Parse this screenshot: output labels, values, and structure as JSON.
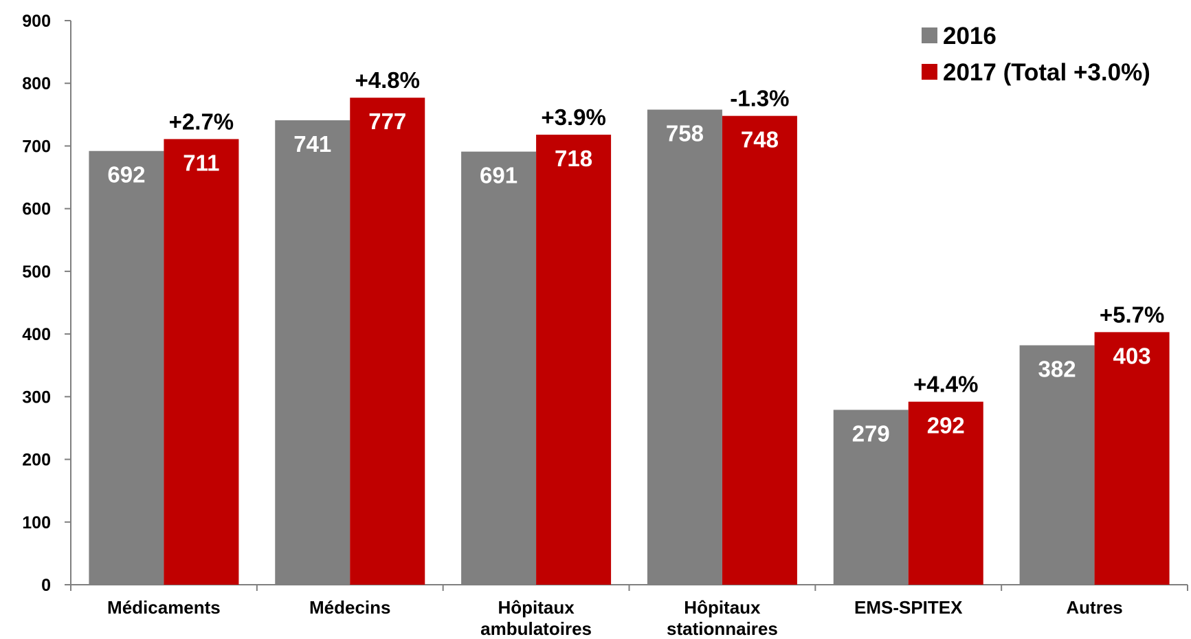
{
  "chart_data": {
    "type": "bar",
    "categories": [
      [
        "Médicaments"
      ],
      [
        "Médecins"
      ],
      [
        "Hôpitaux",
        "ambulatoires"
      ],
      [
        "Hôpitaux",
        "stationnaires"
      ],
      [
        "EMS-SPITEX"
      ],
      [
        "Autres"
      ]
    ],
    "series": [
      {
        "name": "2016",
        "values": [
          692,
          741,
          691,
          758,
          279,
          382
        ],
        "color": "#808080"
      },
      {
        "name": "2017 (Total +3.0%)",
        "values": [
          711,
          777,
          718,
          748,
          292,
          403
        ],
        "color": "#c00000"
      }
    ],
    "changes": [
      "+2.7%",
      "+4.8%",
      "+3.9%",
      "-1.3%",
      "+4.4%",
      "+5.7%"
    ],
    "ylim": [
      0,
      900
    ],
    "yticks": [
      0,
      100,
      200,
      300,
      400,
      500,
      600,
      700,
      800,
      900
    ],
    "grid": false,
    "legend_position": "top-right"
  }
}
